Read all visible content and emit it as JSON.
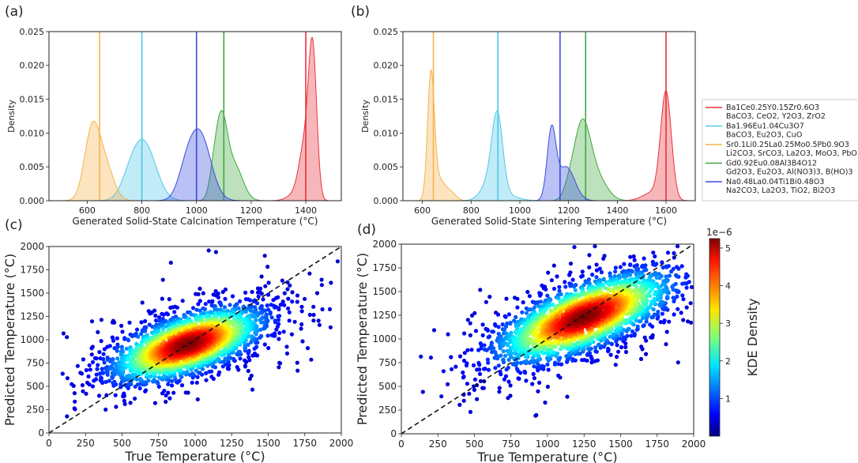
{
  "panels": {
    "a": "(a)",
    "b": "(b)",
    "c": "(c)",
    "d": "(d)"
  },
  "chart_data": [
    {
      "id": "a",
      "type": "area",
      "xlabel": "Generated Solid-State Calcination Temperature (°C)",
      "ylabel": "Density",
      "xlim": [
        460,
        1530
      ],
      "ylim": [
        0,
        0.025
      ],
      "xticks": [
        600,
        800,
        1000,
        1200,
        1400
      ],
      "yticks": [
        0.0,
        0.005,
        0.01,
        0.015,
        0.02,
        0.025
      ],
      "ytick_labels": [
        "0.000",
        "0.005",
        "0.010",
        "0.015",
        "0.020",
        "0.025"
      ],
      "series": [
        {
          "color": "#e8323a",
          "vline": 1400,
          "peaks": [
            [
              1425,
              15,
              0.0215
            ],
            [
              1395,
              20,
              0.0072
            ],
            [
              1365,
              30,
              0.001
            ]
          ]
        },
        {
          "color": "#4fc7ea",
          "vline": 800,
          "peaks": [
            [
              812,
              42,
              0.0078
            ],
            [
              760,
              35,
              0.003
            ]
          ]
        },
        {
          "color": "#f6b34a",
          "vline": 645,
          "peaks": [
            [
              618,
              28,
              0.0104
            ],
            [
              668,
              30,
              0.0047
            ]
          ]
        },
        {
          "color": "#3ea83e",
          "vline": 1100,
          "peaks": [
            [
              1090,
              22,
              0.0118
            ],
            [
              1140,
              30,
              0.005
            ],
            [
              1060,
              15,
              0.002
            ]
          ]
        },
        {
          "color": "#3a4ce0",
          "vline": 1000,
          "peaks": [
            [
              1012,
              40,
              0.0098
            ],
            [
              960,
              30,
              0.003
            ]
          ]
        }
      ],
      "grid": false
    },
    {
      "id": "b",
      "type": "area",
      "xlabel": "Generated Solid-State Sintering Temperature (°C)",
      "ylabel": "Density",
      "xlim": [
        520,
        1720
      ],
      "ylim": [
        0,
        0.025
      ],
      "xticks": [
        600,
        800,
        1000,
        1200,
        1400,
        1600
      ],
      "yticks": [
        0.0,
        0.005,
        0.01,
        0.015,
        0.02,
        0.025
      ],
      "ytick_labels": [
        "0.000",
        "0.005",
        "0.010",
        "0.015",
        "0.020",
        "0.025"
      ],
      "series": [
        {
          "color": "#e8323a",
          "vline": 1600,
          "peaks": [
            [
              1600,
              22,
              0.0158
            ],
            [
              1545,
              40,
              0.0012
            ]
          ]
        },
        {
          "color": "#4fc7ea",
          "vline": 910,
          "peaks": [
            [
              908,
              22,
              0.0108
            ],
            [
              880,
              35,
              0.003
            ],
            [
              960,
              40,
              0.0006
            ]
          ]
        },
        {
          "color": "#f6b34a",
          "vline": 645,
          "peaks": [
            [
              635,
              14,
              0.0182
            ],
            [
              670,
              25,
              0.003
            ],
            [
              720,
              20,
              0.001
            ]
          ]
        },
        {
          "color": "#3ea83e",
          "vline": 1270,
          "peaks": [
            [
              1255,
              35,
              0.0112
            ],
            [
              1320,
              40,
              0.003
            ],
            [
              1200,
              20,
              0.001
            ]
          ]
        },
        {
          "color": "#3a4ce0",
          "vline": 1165,
          "peaks": [
            [
              1130,
              18,
              0.01
            ],
            [
              1190,
              35,
              0.005
            ]
          ]
        }
      ],
      "grid": false
    },
    {
      "id": "c",
      "type": "scatter",
      "xlabel": "True Temperature (°C)",
      "ylabel": "Predicted Temperature (°C)",
      "xlim": [
        0,
        2000
      ],
      "ylim": [
        0,
        2000
      ],
      "xticks": [
        0,
        250,
        500,
        750,
        1000,
        1250,
        1500,
        1750,
        2000
      ],
      "yticks": [
        0,
        250,
        500,
        750,
        1000,
        1250,
        1500,
        1750,
        2000
      ],
      "cluster": {
        "cx": 950,
        "cy": 950,
        "sx": 260,
        "sy": 200,
        "corr": 0.6,
        "n": 2600
      },
      "diagonal": true
    },
    {
      "id": "d",
      "type": "scatter",
      "xlabel": "True Temperature (°C)",
      "ylabel": "Predicted Temperature (°C)",
      "xlim": [
        0,
        2000
      ],
      "ylim": [
        0,
        2000
      ],
      "xticks": [
        0,
        250,
        500,
        750,
        1000,
        1250,
        1500,
        1750,
        2000
      ],
      "yticks": [
        0,
        250,
        500,
        750,
        1000,
        1250,
        1500,
        1750,
        2000
      ],
      "cluster": {
        "cx": 1250,
        "cy": 1230,
        "sx": 300,
        "sy": 240,
        "corr": 0.68,
        "n": 2600
      },
      "diagonal": true
    }
  ],
  "legend": {
    "entries": [
      {
        "color": "#e8323a",
        "line1": "Ba1Ce0.25Y0.15Zr0.6O3",
        "line2": "BaCO3, CeO2, Y2O3, ZrO2"
      },
      {
        "color": "#4fc7ea",
        "line1": "Ba1.96Eu1.04Cu3O7",
        "line2": "BaCO3, Eu2O3, CuO"
      },
      {
        "color": "#f6b34a",
        "line1": "Sr0.1Li0.25La0.25Mo0.5Pb0.9O3",
        "line2": "Li2CO3, SrCO3, La2O3, MoO3, PbO"
      },
      {
        "color": "#3ea83e",
        "line1": "Gd0.92Eu0.08Al3B4O12",
        "line2": "Gd2O3, Eu2O3, Al(NO3)3, B(HO)3"
      },
      {
        "color": "#3a4ce0",
        "line1": "Na0.48La0.04Ti1Bi0.48O3",
        "line2": "Na2CO3, La2O3, TiO2, Bi2O3"
      }
    ]
  },
  "colorbar": {
    "label": "KDE Density",
    "exponent": "1e−6",
    "ticks": [
      1,
      2,
      3,
      4,
      5
    ],
    "max": 5.25
  }
}
